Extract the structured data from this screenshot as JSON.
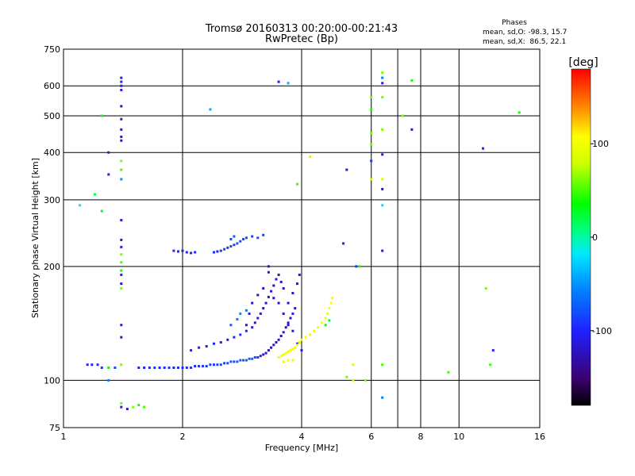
{
  "chart_data": {
    "type": "scatter",
    "title": "Tromsø 20160313 00:20:00-00:21:43",
    "subtitle": "RwPretec (Bp)",
    "xlabel": "Frequency [MHz]",
    "ylabel": "Stationary phase Virtual Height [km]",
    "x_scale": "log",
    "y_scale": "log",
    "xlim": [
      1,
      16
    ],
    "ylim": [
      75,
      750
    ],
    "x_ticks": [
      {
        "v": 1,
        "label": "1"
      },
      {
        "v": 2,
        "label": "2"
      },
      {
        "v": 4,
        "label": "4"
      },
      {
        "v": 6,
        "label": "6"
      },
      {
        "v": 8,
        "label": "8"
      },
      {
        "v": 10,
        "label": "10"
      },
      {
        "v": 16,
        "label": "16"
      }
    ],
    "x_minor_gridlines": [
      7
    ],
    "y_ticks": [
      {
        "v": 75,
        "label": "75"
      },
      {
        "v": 100,
        "label": "100"
      },
      {
        "v": 200,
        "label": "200"
      },
      {
        "v": 300,
        "label": "300"
      },
      {
        "v": 400,
        "label": "400"
      },
      {
        "v": 500,
        "label": "500"
      },
      {
        "v": 600,
        "label": "600"
      },
      {
        "v": 750,
        "label": "750"
      }
    ],
    "grid": true,
    "info": {
      "heading": "Phases",
      "line1": "mean, sd,O: -98.3, 15.7",
      "line2": "mean, sd,X:  86.5, 22.1"
    },
    "colorbar": {
      "label": "[deg]",
      "range": [
        -180,
        180
      ],
      "ticks": [
        {
          "v": 100,
          "label": "100"
        },
        {
          "v": 0,
          "label": "0"
        },
        {
          "v": -100,
          "label": "-100"
        }
      ]
    },
    "series": [
      {
        "name": "lower-trace-O",
        "points": [
          [
            1.15,
            110,
            -100
          ],
          [
            1.18,
            110,
            -105
          ],
          [
            1.22,
            110,
            -95
          ],
          [
            1.25,
            108,
            -90
          ],
          [
            1.3,
            108,
            40
          ],
          [
            1.35,
            108,
            -80
          ],
          [
            1.55,
            108,
            -100
          ],
          [
            1.6,
            108,
            -100
          ],
          [
            1.65,
            108,
            -95
          ],
          [
            1.7,
            108,
            -90
          ],
          [
            1.75,
            108,
            -100
          ],
          [
            1.8,
            108,
            -95
          ],
          [
            1.85,
            108,
            -90
          ],
          [
            1.9,
            108,
            -100
          ],
          [
            1.95,
            108,
            -95
          ],
          [
            2.0,
            108,
            -100
          ],
          [
            2.05,
            108,
            -95
          ],
          [
            2.1,
            108,
            -90
          ],
          [
            2.15,
            109,
            -100
          ],
          [
            2.2,
            109,
            -95
          ],
          [
            2.25,
            109,
            -90
          ],
          [
            2.3,
            109,
            -95
          ],
          [
            2.35,
            110,
            -85
          ],
          [
            2.4,
            110,
            -90
          ],
          [
            2.45,
            110,
            -85
          ],
          [
            2.5,
            110,
            -80
          ],
          [
            2.55,
            111,
            -85
          ],
          [
            2.6,
            111,
            -80
          ],
          [
            2.65,
            112,
            -75
          ],
          [
            2.7,
            112,
            -80
          ],
          [
            2.75,
            112,
            -75
          ],
          [
            2.8,
            113,
            -70
          ],
          [
            2.85,
            113,
            -75
          ],
          [
            2.9,
            113,
            -70
          ],
          [
            2.95,
            114,
            -75
          ],
          [
            3.0,
            114,
            -70
          ],
          [
            3.05,
            115,
            -80
          ],
          [
            3.1,
            115,
            -90
          ],
          [
            3.15,
            116,
            -100
          ],
          [
            3.2,
            117,
            -110
          ],
          [
            3.25,
            118,
            -115
          ],
          [
            3.3,
            120,
            -120
          ],
          [
            3.35,
            122,
            -120
          ],
          [
            3.4,
            124,
            -115
          ],
          [
            3.45,
            126,
            -120
          ],
          [
            3.5,
            128,
            -115
          ],
          [
            3.55,
            131,
            -120
          ],
          [
            3.6,
            134,
            -110
          ],
          [
            3.65,
            138,
            -120
          ],
          [
            3.7,
            142,
            -115
          ],
          [
            3.75,
            146,
            -120
          ],
          [
            3.8,
            150,
            -110
          ],
          [
            3.85,
            155,
            -120
          ]
        ]
      },
      {
        "name": "upper-trace-O",
        "points": [
          [
            2.1,
            120,
            -100
          ],
          [
            2.2,
            122,
            -105
          ],
          [
            2.3,
            123,
            -110
          ],
          [
            2.4,
            125,
            -100
          ],
          [
            2.5,
            126,
            -105
          ],
          [
            2.6,
            128,
            -110
          ],
          [
            2.7,
            130,
            -100
          ],
          [
            2.8,
            132,
            -90
          ],
          [
            2.9,
            135,
            -95
          ],
          [
            3.0,
            138,
            -110
          ],
          [
            3.05,
            142,
            -115
          ],
          [
            3.1,
            146,
            -110
          ],
          [
            3.15,
            150,
            -115
          ],
          [
            3.2,
            155,
            -120
          ],
          [
            3.25,
            160,
            -115
          ],
          [
            3.3,
            166,
            -120
          ],
          [
            3.35,
            172,
            -115
          ],
          [
            3.4,
            178,
            -120
          ],
          [
            3.45,
            185,
            -115
          ],
          [
            3.5,
            190,
            -120
          ],
          [
            3.55,
            182,
            -115
          ],
          [
            3.6,
            175,
            -120
          ],
          [
            3.3,
            200,
            -120
          ],
          [
            3.3,
            193,
            -115
          ],
          [
            3.4,
            165,
            -120
          ],
          [
            3.5,
            160,
            -115
          ],
          [
            3.6,
            150,
            -120
          ],
          [
            3.7,
            160,
            -115
          ],
          [
            3.8,
            170,
            -120
          ],
          [
            3.9,
            180,
            -115
          ],
          [
            3.95,
            190,
            -120
          ],
          [
            3.2,
            175,
            -115
          ],
          [
            3.1,
            168,
            -120
          ],
          [
            3.0,
            160,
            -115
          ],
          [
            2.95,
            150,
            -110
          ],
          [
            2.9,
            140,
            -115
          ],
          [
            3.7,
            140,
            -120
          ],
          [
            3.8,
            135,
            -115
          ],
          [
            3.9,
            125,
            -120
          ],
          [
            4.0,
            120,
            -115
          ],
          [
            2.65,
            140,
            -70
          ],
          [
            2.75,
            145,
            -60
          ],
          [
            2.8,
            150,
            -55
          ],
          [
            2.9,
            153,
            -60
          ]
        ]
      },
      {
        "name": "x-trace",
        "points": [
          [
            3.5,
            115,
            100
          ],
          [
            3.55,
            116,
            105
          ],
          [
            3.6,
            117,
            95
          ],
          [
            3.65,
            118,
            100
          ],
          [
            3.7,
            119,
            110
          ],
          [
            3.75,
            120,
            100
          ],
          [
            3.8,
            121,
            95
          ],
          [
            3.85,
            122,
            105
          ],
          [
            3.9,
            124,
            100
          ],
          [
            3.95,
            126,
            95
          ],
          [
            4.0,
            128,
            100
          ],
          [
            4.1,
            130,
            110
          ],
          [
            4.2,
            132,
            100
          ],
          [
            4.3,
            135,
            95
          ],
          [
            4.4,
            138,
            100
          ],
          [
            4.5,
            142,
            105
          ],
          [
            4.6,
            146,
            100
          ],
          [
            4.65,
            150,
            95
          ],
          [
            4.7,
            155,
            100
          ],
          [
            4.75,
            160,
            105
          ],
          [
            4.78,
            165,
            100
          ],
          [
            3.6,
            112,
            95
          ],
          [
            3.7,
            113,
            105
          ],
          [
            3.8,
            113,
            100
          ],
          [
            4.6,
            140,
            40
          ],
          [
            4.7,
            144,
            30
          ]
        ]
      },
      {
        "name": "f2-echo",
        "points": [
          [
            1.9,
            220,
            -100
          ],
          [
            1.95,
            219,
            -105
          ],
          [
            2.0,
            220,
            -110
          ],
          [
            2.05,
            218,
            -100
          ],
          [
            2.1,
            217,
            -105
          ],
          [
            2.15,
            218,
            -100
          ],
          [
            2.4,
            218,
            -95
          ],
          [
            2.45,
            219,
            -100
          ],
          [
            2.5,
            220,
            -90
          ],
          [
            2.55,
            222,
            -85
          ],
          [
            2.6,
            224,
            -90
          ],
          [
            2.65,
            226,
            -80
          ],
          [
            2.7,
            228,
            -85
          ],
          [
            2.75,
            230,
            -75
          ],
          [
            2.8,
            233,
            -80
          ],
          [
            2.85,
            236,
            -85
          ],
          [
            2.9,
            238,
            -80
          ],
          [
            3.0,
            240,
            -85
          ],
          [
            3.1,
            238,
            -80
          ],
          [
            3.2,
            242,
            -85
          ],
          [
            2.65,
            236,
            -80
          ],
          [
            2.7,
            240,
            -75
          ]
        ]
      },
      {
        "name": "vertical-column-1.4MHz",
        "points": [
          [
            1.4,
            630,
            -110
          ],
          [
            1.4,
            615,
            -100
          ],
          [
            1.4,
            600,
            -110
          ],
          [
            1.4,
            585,
            -100
          ],
          [
            1.4,
            530,
            -120
          ],
          [
            1.4,
            490,
            -110
          ],
          [
            1.4,
            460,
            -120
          ],
          [
            1.4,
            440,
            -110
          ],
          [
            1.4,
            430,
            -120
          ],
          [
            1.4,
            380,
            60
          ],
          [
            1.4,
            360,
            50
          ],
          [
            1.4,
            340,
            -50
          ],
          [
            1.4,
            265,
            -110
          ],
          [
            1.4,
            235,
            -120
          ],
          [
            1.4,
            225,
            -110
          ],
          [
            1.4,
            215,
            60
          ],
          [
            1.4,
            205,
            50
          ],
          [
            1.4,
            195,
            40
          ],
          [
            1.4,
            190,
            -110
          ],
          [
            1.4,
            180,
            -120
          ],
          [
            1.4,
            175,
            60
          ],
          [
            1.4,
            140,
            -110
          ],
          [
            1.4,
            130,
            -120
          ],
          [
            1.4,
            110,
            60
          ],
          [
            1.4,
            87,
            60
          ],
          [
            1.4,
            85,
            -110
          ],
          [
            1.45,
            84,
            -100
          ],
          [
            1.5,
            85,
            60
          ],
          [
            1.55,
            86,
            40
          ],
          [
            1.6,
            85,
            50
          ]
        ]
      },
      {
        "name": "vertical-column-6.4MHz",
        "points": [
          [
            6.4,
            650,
            60
          ],
          [
            6.4,
            630,
            -60
          ],
          [
            6.4,
            610,
            -110
          ],
          [
            6.4,
            560,
            60
          ],
          [
            6.4,
            460,
            60
          ],
          [
            6.4,
            395,
            -110
          ],
          [
            6.4,
            340,
            80
          ],
          [
            6.4,
            320,
            -120
          ],
          [
            6.4,
            290,
            -20
          ],
          [
            6.4,
            220,
            -110
          ],
          [
            6.4,
            110,
            50
          ],
          [
            6.4,
            90,
            -60
          ]
        ]
      },
      {
        "name": "vertical-column-6MHz",
        "points": [
          [
            6.0,
            560,
            60
          ],
          [
            6.0,
            450,
            60
          ],
          [
            6.0,
            420,
            60
          ],
          [
            6.0,
            380,
            -90
          ],
          [
            6.0,
            340,
            80
          ],
          [
            6.0,
            520,
            40
          ]
        ]
      },
      {
        "name": "scattered",
        "points": [
          [
            1.1,
            290,
            -20
          ],
          [
            1.2,
            310,
            20
          ],
          [
            1.25,
            280,
            30
          ],
          [
            1.25,
            500,
            30
          ],
          [
            1.3,
            400,
            -110
          ],
          [
            1.3,
            350,
            -100
          ],
          [
            1.3,
            100,
            -60
          ],
          [
            2.35,
            520,
            -40
          ],
          [
            3.7,
            610,
            -40
          ],
          [
            3.5,
            615,
            -110
          ],
          [
            3.9,
            330,
            50
          ],
          [
            4.2,
            390,
            80
          ],
          [
            5.2,
            360,
            -110
          ],
          [
            5.1,
            230,
            -110
          ],
          [
            5.5,
            200,
            -90
          ],
          [
            5.4,
            100,
            80
          ],
          [
            5.6,
            200,
            40
          ],
          [
            5.8,
            100,
            60
          ],
          [
            7.2,
            500,
            60
          ],
          [
            7.6,
            460,
            -120
          ],
          [
            7.6,
            620,
            40
          ],
          [
            9.4,
            105,
            50
          ],
          [
            11.5,
            410,
            -100
          ],
          [
            12.2,
            120,
            -100
          ],
          [
            12.0,
            110,
            50
          ],
          [
            11.7,
            175,
            60
          ],
          [
            14.2,
            510,
            40
          ],
          [
            5.2,
            102,
            60
          ],
          [
            5.4,
            110,
            80
          ]
        ]
      }
    ]
  }
}
